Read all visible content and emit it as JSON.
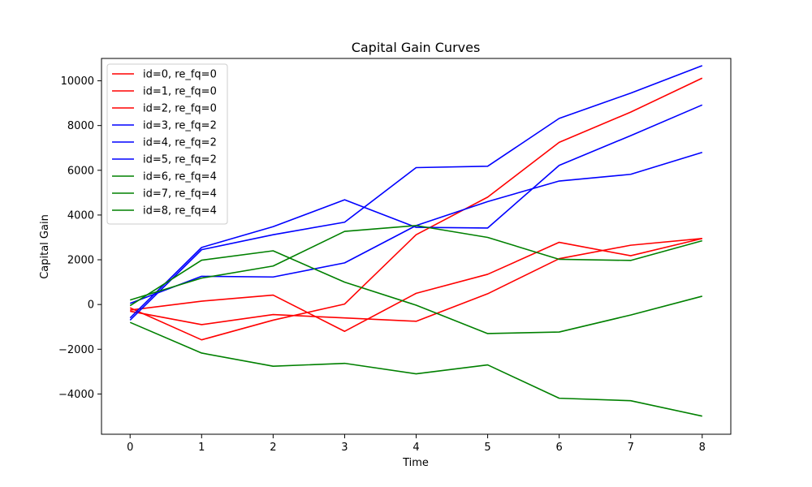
{
  "chart_data": {
    "type": "line",
    "title": "Capital Gain Curves",
    "xlabel": "Time",
    "ylabel": "Capital Gain",
    "x": [
      0,
      1,
      2,
      3,
      4,
      5,
      6,
      7,
      8
    ],
    "xlim": [
      -0.4,
      8.4
    ],
    "ylim": [
      -5800,
      11000
    ],
    "xticks": [
      0,
      1,
      2,
      3,
      4,
      5,
      6,
      7,
      8
    ],
    "yticks": [
      -4000,
      -2000,
      0,
      2000,
      4000,
      6000,
      8000,
      10000
    ],
    "grid": false,
    "legend_position": "top-left",
    "series": [
      {
        "name": "id=0, re_fq=0",
        "color": "#ff0000",
        "values": [
          -250,
          150,
          420,
          -1200,
          500,
          1350,
          2780,
          2180,
          2950
        ]
      },
      {
        "name": "id=1, re_fq=0",
        "color": "#ff0000",
        "values": [
          -300,
          -900,
          -450,
          -600,
          -750,
          480,
          2050,
          2650,
          2950
        ]
      },
      {
        "name": "id=2, re_fq=0",
        "color": "#ff0000",
        "values": [
          -150,
          -1580,
          -700,
          20,
          3120,
          4800,
          7250,
          8600,
          10120
        ]
      },
      {
        "name": "id=3, re_fq=2",
        "color": "#0000ff",
        "values": [
          -700,
          2450,
          3120,
          3680,
          6120,
          6180,
          8320,
          9450,
          10680
        ]
      },
      {
        "name": "id=4, re_fq=2",
        "color": "#0000ff",
        "values": [
          -600,
          2550,
          3480,
          4680,
          3450,
          3420,
          6220,
          7550,
          8920
        ]
      },
      {
        "name": "id=5, re_fq=2",
        "color": "#0000ff",
        "values": [
          50,
          1260,
          1230,
          1860,
          3530,
          4600,
          5520,
          5820,
          6800
        ]
      },
      {
        "name": "id=6, re_fq=4",
        "color": "#008000",
        "values": [
          200,
          1180,
          1720,
          3270,
          3530,
          3000,
          2020,
          1970,
          2850
        ]
      },
      {
        "name": "id=7, re_fq=4",
        "color": "#008000",
        "values": [
          -50,
          1980,
          2400,
          1000,
          -30,
          -1300,
          -1230,
          -470,
          370
        ]
      },
      {
        "name": "id=8, re_fq=4",
        "color": "#008000",
        "values": [
          -800,
          -2170,
          -2760,
          -2630,
          -3100,
          -2700,
          -4190,
          -4300,
          -4990
        ]
      }
    ]
  }
}
